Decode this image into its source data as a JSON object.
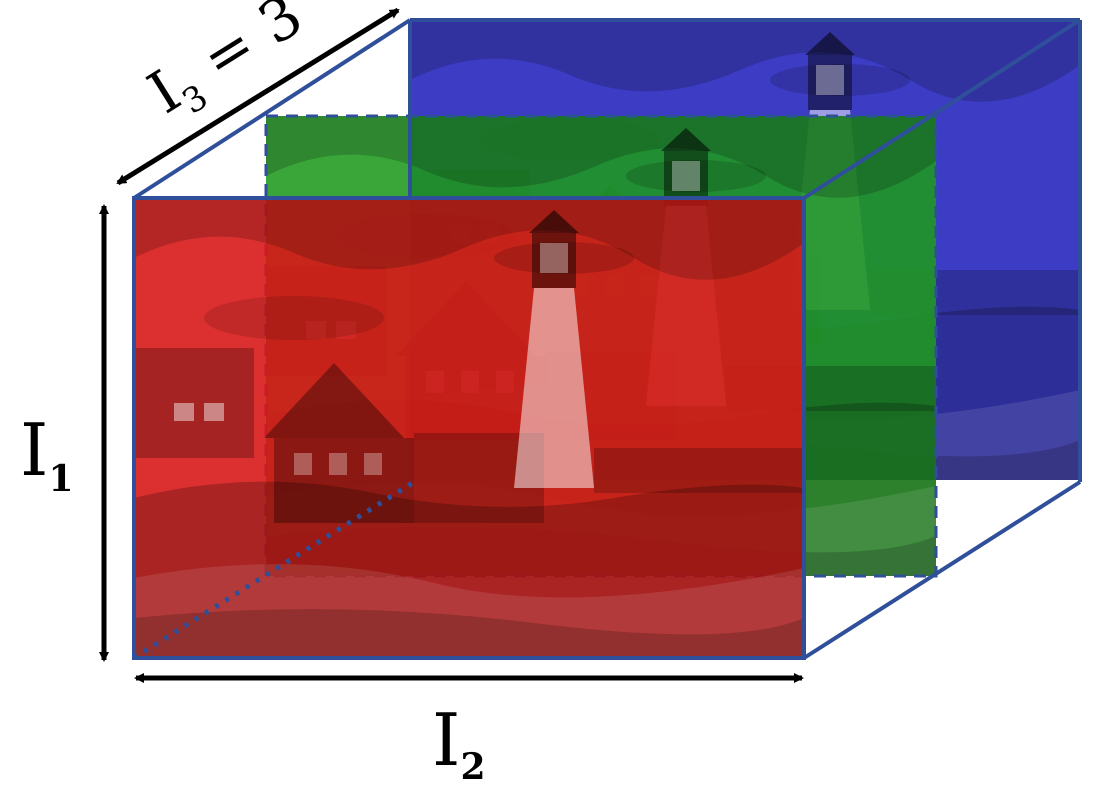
{
  "dims": {
    "i1": {
      "base": "I",
      "sub": "1"
    },
    "i2": {
      "base": "I",
      "sub": "2"
    },
    "i3": {
      "base": "I",
      "sub": "3",
      "suffix": " = 3"
    }
  },
  "channels": [
    {
      "name": "red",
      "color": "#d81818"
    },
    {
      "name": "green",
      "color": "#1f9a1f"
    },
    {
      "name": "blue",
      "color": "#3c3cc4"
    }
  ],
  "colors": {
    "edge": "#2f4f9a",
    "arrow": "#000000",
    "background": "#ffffff"
  }
}
